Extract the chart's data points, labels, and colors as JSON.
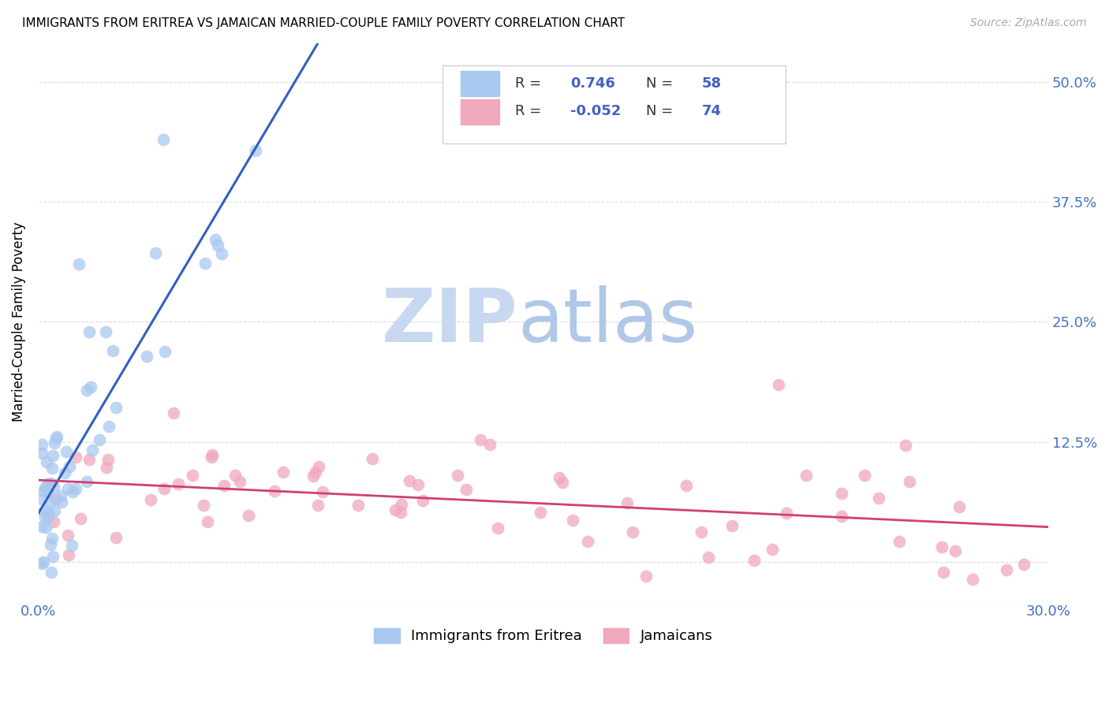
{
  "title": "IMMIGRANTS FROM ERITREA VS JAMAICAN MARRIED-COUPLE FAMILY POVERTY CORRELATION CHART",
  "source": "Source: ZipAtlas.com",
  "ylabel": "Married-Couple Family Poverty",
  "xlim": [
    0.0,
    0.3
  ],
  "ylim": [
    -0.04,
    0.54
  ],
  "xticks": [
    0.0,
    0.075,
    0.15,
    0.225,
    0.3
  ],
  "xtick_labels": [
    "0.0%",
    "",
    "",
    "",
    "30.0%"
  ],
  "yticks": [
    0.0,
    0.125,
    0.25,
    0.375,
    0.5
  ],
  "ytick_labels_right": [
    "",
    "12.5%",
    "25.0%",
    "37.5%",
    "50.0%"
  ],
  "blue_color": "#a8c8f0",
  "pink_color": "#f0a8bc",
  "line_blue": "#3060c0",
  "line_pink": "#d04070",
  "tick_color": "#4472c4",
  "watermark_zip_color": "#c8d8f0",
  "watermark_atlas_color": "#b0c8e8",
  "legend_box_color": "#e8e8f0",
  "legend_text_color": "#333333",
  "legend_value_color": "#4060c0"
}
